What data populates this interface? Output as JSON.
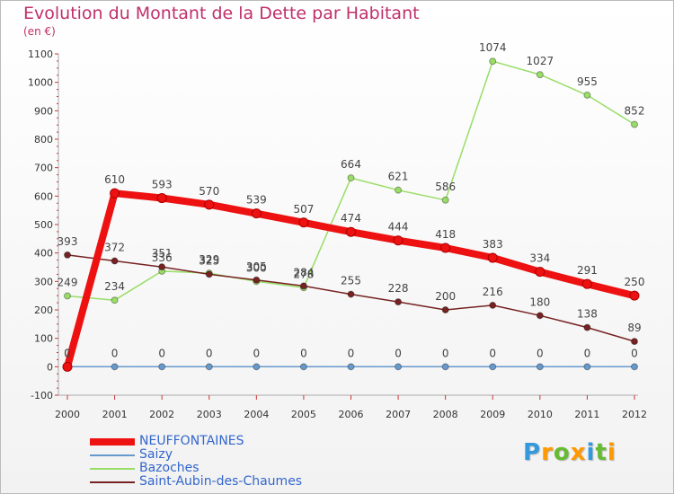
{
  "chart_data": {
    "type": "line",
    "title": "Evolution du Montant de la Dette par Habitant",
    "subtitle": "(en €)",
    "x": [
      "2000",
      "2001",
      "2002",
      "2003",
      "2004",
      "2005",
      "2006",
      "2007",
      "2008",
      "2009",
      "2010",
      "2011",
      "2012"
    ],
    "ylim": [
      -100,
      1100
    ],
    "yticks": [
      -100,
      0,
      100,
      200,
      300,
      400,
      500,
      600,
      700,
      800,
      900,
      1000,
      1100
    ],
    "grid": false,
    "legend_position": "bottom-left",
    "series": [
      {
        "name": "NEUFFONTAINES",
        "color": "#ee1111",
        "values": [
          0,
          610,
          593,
          570,
          539,
          507,
          474,
          444,
          418,
          383,
          334,
          291,
          250
        ]
      },
      {
        "name": "Saizy",
        "color": "#6699cc",
        "values": [
          0,
          0,
          0,
          0,
          0,
          0,
          0,
          0,
          0,
          0,
          0,
          0,
          0
        ]
      },
      {
        "name": "Bazoches",
        "color": "#99dd66",
        "values": [
          249,
          234,
          336,
          329,
          300,
          278,
          664,
          621,
          586,
          1074,
          1027,
          955,
          852
        ]
      },
      {
        "name": "Saint-Aubin-des-Chaumes",
        "color": "#772222",
        "values": [
          393,
          372,
          351,
          325,
          305,
          284,
          255,
          228,
          200,
          216,
          180,
          138,
          89
        ]
      }
    ]
  },
  "legend_text_color": "#3366cc",
  "logo": {
    "letters": [
      "P",
      "r",
      "o",
      "x",
      "i",
      "t",
      "i"
    ],
    "colors": [
      "#3399dd",
      "#ff9900",
      "#66bb33",
      "#ff9900",
      "#3399dd",
      "#66bb33",
      "#ff9900"
    ]
  }
}
